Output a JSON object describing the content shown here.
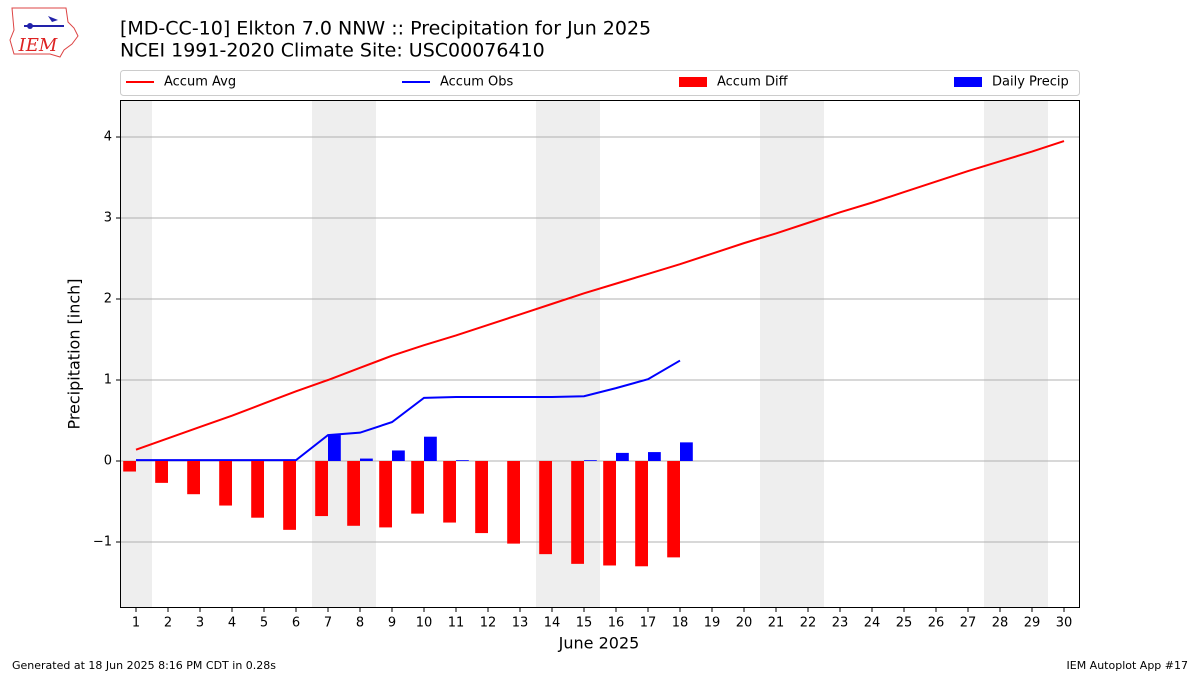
{
  "chart_data": {
    "type": "combo",
    "title": "[MD-CC-10] Elkton 7.0 NNW :: Precipitation for Jun 2025",
    "subtitle": "NCEI 1991-2020 Climate Site: USC00076410",
    "logo_text": "IEM",
    "x_label": "June 2025",
    "y_label": "Precipitation [inch]",
    "footer_left": "Generated at 18 Jun 2025 8:16 PM CDT in 0.28s",
    "footer_right": "IEM Autoplot App #17",
    "x": [
      1,
      2,
      3,
      4,
      5,
      6,
      7,
      8,
      9,
      10,
      11,
      12,
      13,
      14,
      15,
      16,
      17,
      18,
      19,
      20,
      21,
      22,
      23,
      24,
      25,
      26,
      27,
      28,
      29,
      30
    ],
    "xlim": [
      0.5,
      30.5
    ],
    "xticks": [
      1,
      2,
      3,
      4,
      5,
      6,
      7,
      8,
      9,
      10,
      11,
      12,
      13,
      14,
      15,
      16,
      17,
      18,
      19,
      20,
      21,
      22,
      23,
      24,
      25,
      26,
      27,
      28,
      29,
      30
    ],
    "ylim": [
      -1.815,
      4.457
    ],
    "yticks": [
      {
        "value": -1,
        "label": "−1"
      },
      0,
      1,
      2,
      3,
      4
    ],
    "grid": true,
    "shaded_days": [
      1,
      7,
      8,
      14,
      15,
      21,
      22,
      28,
      29
    ],
    "shade_color": "#eeeeee",
    "legend": "top",
    "series": [
      {
        "name": "Accum Avg",
        "type": "line",
        "color": "#ff0000",
        "values": [
          0.14,
          0.28,
          0.42,
          0.56,
          0.71,
          0.86,
          1.0,
          1.15,
          1.3,
          1.43,
          1.55,
          1.68,
          1.81,
          1.94,
          2.07,
          2.19,
          2.31,
          2.43,
          2.56,
          2.69,
          2.81,
          2.94,
          3.07,
          3.19,
          3.32,
          3.45,
          3.58,
          3.7,
          3.82,
          3.95
        ]
      },
      {
        "name": "Accum Obs",
        "type": "line",
        "color": "#0000ff",
        "values": [
          0.01,
          0.01,
          0.01,
          0.01,
          0.01,
          0.01,
          0.32,
          0.35,
          0.48,
          0.78,
          0.79,
          0.79,
          0.79,
          0.79,
          0.8,
          0.9,
          1.01,
          1.24,
          null,
          null,
          null,
          null,
          null,
          null,
          null,
          null,
          null,
          null,
          null,
          null
        ]
      },
      {
        "name": "Accum Diff",
        "type": "bar",
        "color": "#ff0000",
        "values": [
          -0.13,
          -0.27,
          -0.41,
          -0.55,
          -0.7,
          -0.85,
          -0.68,
          -0.8,
          -0.82,
          -0.65,
          -0.76,
          -0.89,
          -1.02,
          -1.15,
          -1.27,
          -1.29,
          -1.3,
          -1.19,
          null,
          null,
          null,
          null,
          null,
          null,
          null,
          null,
          null,
          null,
          null,
          null
        ]
      },
      {
        "name": "Daily Precip",
        "type": "bar",
        "color": "#0000ff",
        "values": [
          0,
          0,
          0,
          0,
          0,
          0,
          0.32,
          0.03,
          0.13,
          0.3,
          0.01,
          0,
          0,
          0,
          0.01,
          0.1,
          0.11,
          0.23,
          null,
          null,
          null,
          null,
          null,
          null,
          null,
          null,
          null,
          null,
          null,
          null
        ]
      }
    ]
  }
}
